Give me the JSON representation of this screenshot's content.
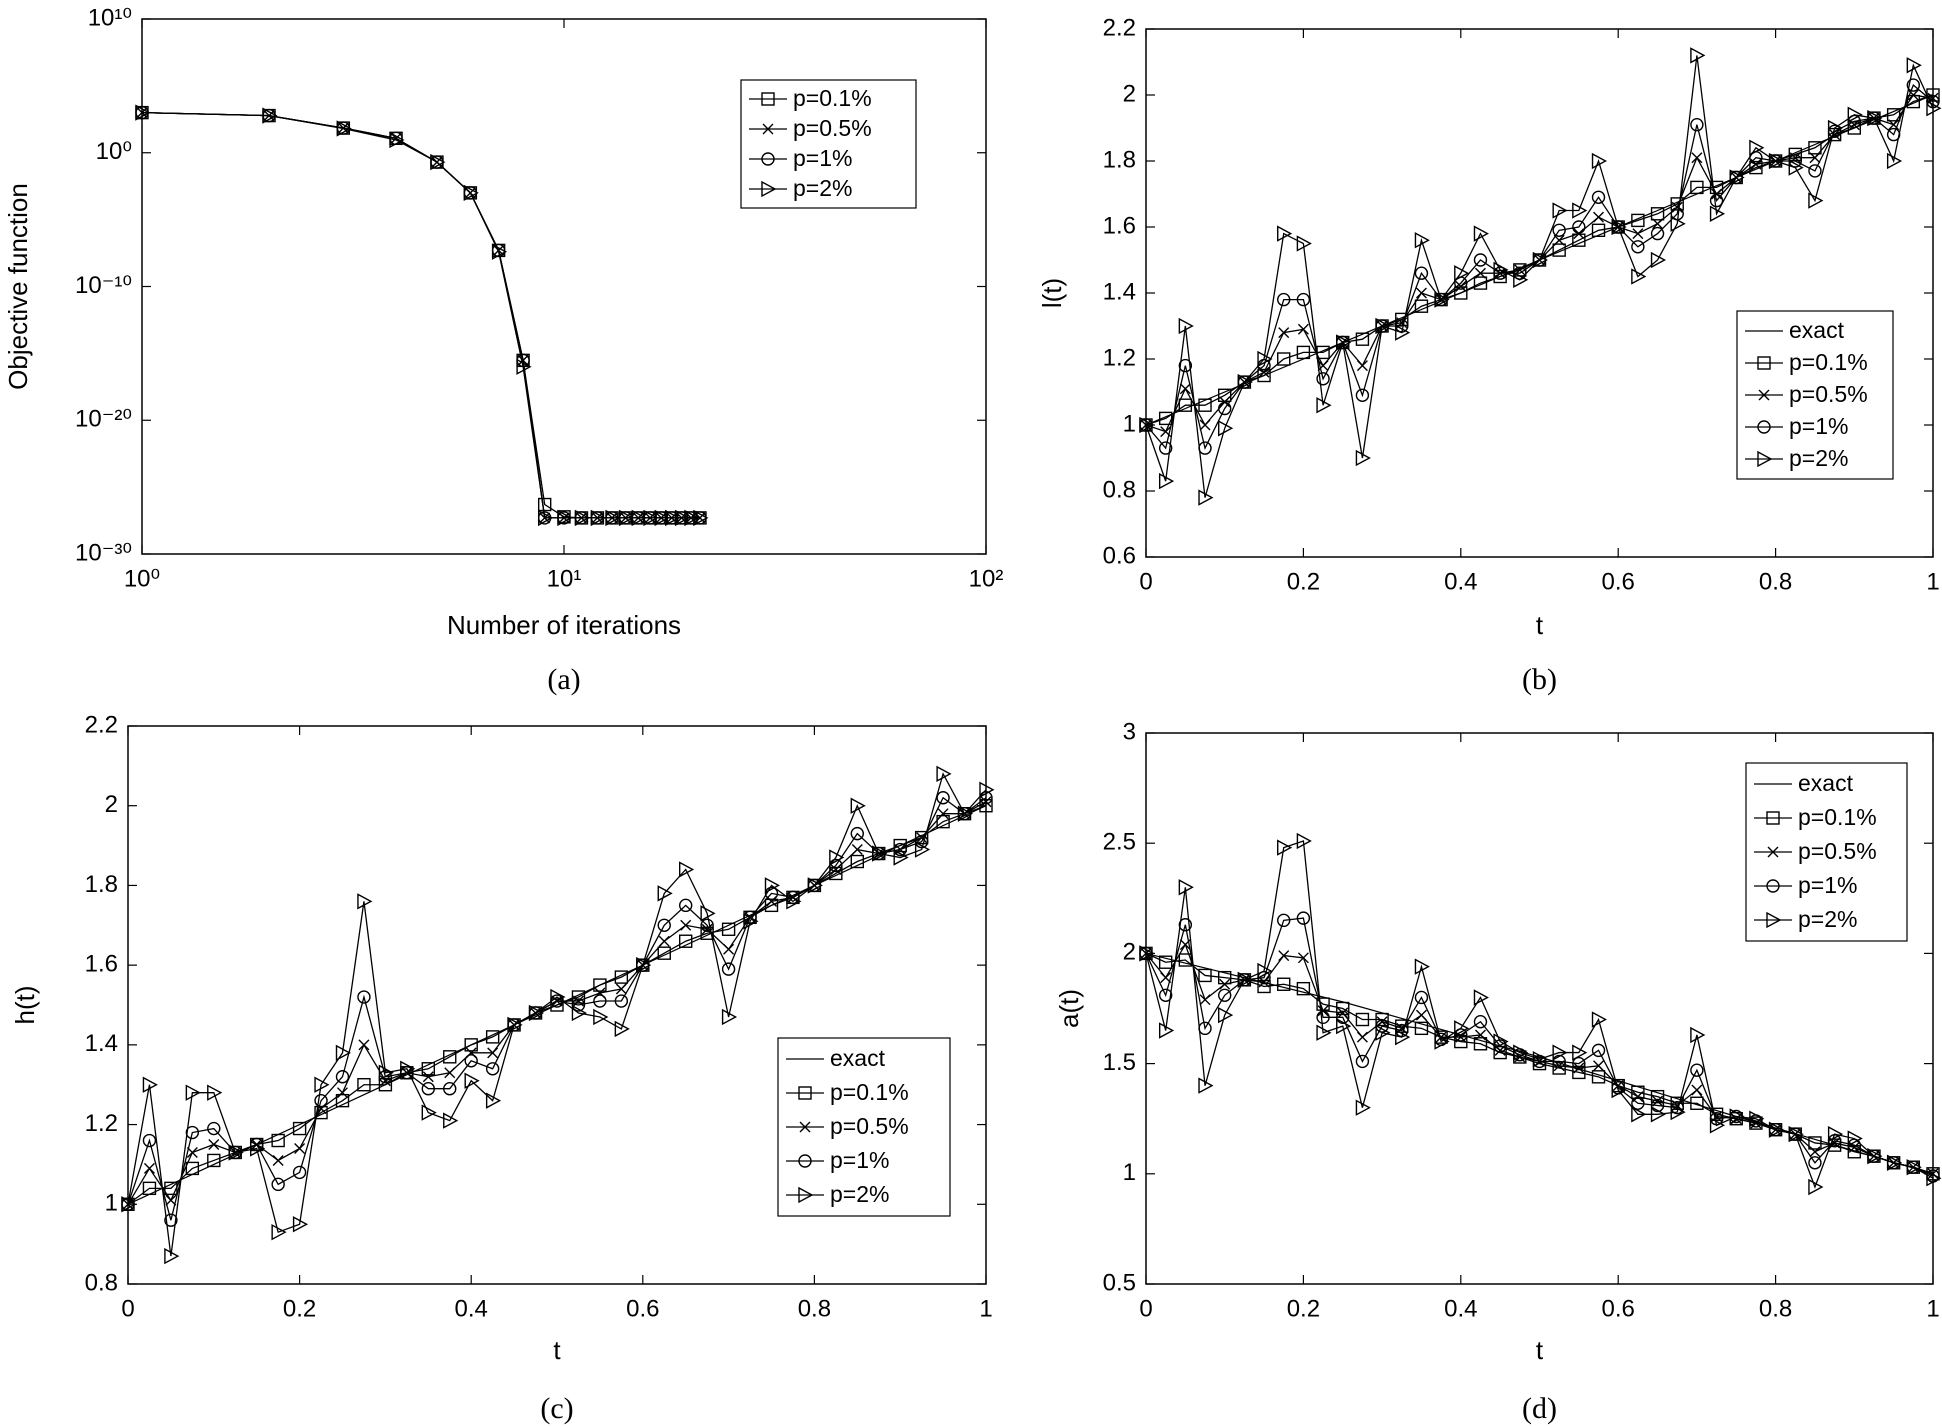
{
  "chart_data": [
    {
      "type": "line",
      "caption": "(a)",
      "xlabel": "Number of iterations",
      "ylabel": "Objective function",
      "xscale": "log",
      "yscale": "log",
      "xlim": [
        1,
        100
      ],
      "ylim": [
        1e-30,
        10000000000.0
      ],
      "xticks": [
        {
          "value": 1,
          "label": "10⁰"
        },
        {
          "value": 10,
          "label": "10¹"
        },
        {
          "value": 100,
          "label": "10²"
        }
      ],
      "yticks": [
        {
          "value": 1e-30,
          "label": "10⁻³⁰"
        },
        {
          "value": 1e-20,
          "label": "10⁻²⁰"
        },
        {
          "value": 1e-10,
          "label": "10⁻¹⁰"
        },
        {
          "value": 1,
          "label": "10⁰"
        },
        {
          "value": 10000000000.0,
          "label": "10¹⁰"
        }
      ],
      "legend": "upper right",
      "grid": false,
      "x": [
        1,
        2,
        3,
        4,
        5,
        6,
        7,
        8,
        9,
        10,
        11,
        12,
        13,
        14,
        15,
        16,
        17,
        18,
        19,
        20,
        21
      ],
      "series": [
        {
          "name": "p=0.1%",
          "color": "#000000",
          "marker": "square",
          "values": [
            1000,
            600,
            70,
            12,
            0.2,
            0.001,
            5e-08,
            3e-16,
            5e-27,
            6e-28,
            5e-28,
            5e-28,
            5e-28,
            5e-28,
            5e-28,
            5e-28,
            5e-28,
            5e-28,
            5e-28,
            5e-28,
            5e-28
          ]
        },
        {
          "name": "p=0.5%",
          "color": "#000000",
          "marker": "x",
          "values": [
            1000,
            600,
            70,
            12,
            0.2,
            0.001,
            5e-08,
            3e-16,
            5e-28,
            5e-28,
            5e-28,
            5e-28,
            5e-28,
            5e-28,
            5e-28,
            5e-28,
            5e-28,
            5e-28,
            5e-28,
            5e-28,
            5e-28
          ]
        },
        {
          "name": "p=1%",
          "color": "#000000",
          "marker": "circle",
          "values": [
            1000,
            600,
            70,
            12,
            0.2,
            0.001,
            5e-08,
            3e-16,
            5e-28,
            5e-28,
            5e-28,
            5e-28,
            5e-28,
            5e-28,
            5e-28,
            5e-28,
            5e-28,
            5e-28,
            5e-28,
            5e-28,
            5e-28
          ]
        },
        {
          "name": "p=2%",
          "color": "#000000",
          "marker": "triangle-right",
          "values": [
            1000,
            600,
            65,
            9,
            0.2,
            0.001,
            4e-08,
            1e-16,
            5e-28,
            5e-28,
            5e-28,
            5e-28,
            5e-28,
            5e-28,
            5e-28,
            5e-28,
            5e-28,
            5e-28,
            5e-28,
            5e-28,
            5e-28
          ]
        }
      ]
    },
    {
      "type": "line",
      "caption": "(b)",
      "xlabel": "t",
      "ylabel": "l(t)",
      "xlim": [
        0,
        1
      ],
      "ylim": [
        0.6,
        2.2
      ],
      "xticks": [
        0,
        0.2,
        0.4,
        0.6,
        0.8,
        1
      ],
      "yticks": [
        0.6,
        0.8,
        1,
        1.2,
        1.4,
        1.6,
        1.8,
        2,
        2.2
      ],
      "legend": "lower right",
      "grid": false,
      "x": [
        0,
        0.025,
        0.05,
        0.075,
        0.1,
        0.125,
        0.15,
        0.175,
        0.2,
        0.225,
        0.25,
        0.275,
        0.3,
        0.325,
        0.35,
        0.375,
        0.4,
        0.425,
        0.45,
        0.475,
        0.5,
        0.525,
        0.55,
        0.575,
        0.6,
        0.625,
        0.65,
        0.675,
        0.7,
        0.725,
        0.75,
        0.775,
        0.8,
        0.825,
        0.85,
        0.875,
        0.9,
        0.925,
        0.95,
        0.975,
        1
      ],
      "series": [
        {
          "name": "exact",
          "color": "#000000",
          "marker": "none",
          "x": [
            0,
            1
          ],
          "values": [
            1,
            2
          ]
        },
        {
          "name": "p=0.1%",
          "color": "#000000",
          "marker": "square",
          "values": [
            1,
            1.02,
            1.06,
            1.06,
            1.09,
            1.13,
            1.15,
            1.2,
            1.22,
            1.22,
            1.25,
            1.26,
            1.3,
            1.32,
            1.36,
            1.38,
            1.4,
            1.43,
            1.45,
            1.47,
            1.5,
            1.53,
            1.56,
            1.59,
            1.6,
            1.62,
            1.64,
            1.67,
            1.72,
            1.72,
            1.75,
            1.78,
            1.8,
            1.82,
            1.84,
            1.88,
            1.9,
            1.93,
            1.94,
            1.98,
            2
          ]
        },
        {
          "name": "p=0.5%",
          "color": "#000000",
          "marker": "x",
          "values": [
            1,
            0.98,
            1.11,
            1,
            1.07,
            1.13,
            1.16,
            1.28,
            1.29,
            1.18,
            1.25,
            1.18,
            1.3,
            1.31,
            1.4,
            1.38,
            1.42,
            1.46,
            1.46,
            1.47,
            1.5,
            1.56,
            1.58,
            1.63,
            1.6,
            1.58,
            1.61,
            1.66,
            1.81,
            1.7,
            1.75,
            1.79,
            1.8,
            1.81,
            1.81,
            1.88,
            1.91,
            1.93,
            1.91,
            2,
            1.99
          ]
        },
        {
          "name": "p=1%",
          "color": "#000000",
          "marker": "circle",
          "values": [
            1,
            0.93,
            1.18,
            0.93,
            1.05,
            1.13,
            1.18,
            1.38,
            1.38,
            1.14,
            1.25,
            1.09,
            1.3,
            1.3,
            1.46,
            1.38,
            1.43,
            1.5,
            1.46,
            1.46,
            1.5,
            1.59,
            1.6,
            1.69,
            1.6,
            1.54,
            1.58,
            1.64,
            1.91,
            1.68,
            1.75,
            1.81,
            1.8,
            1.8,
            1.77,
            1.89,
            1.92,
            1.93,
            1.88,
            2.03,
            1.98
          ]
        },
        {
          "name": "p=2%",
          "color": "#000000",
          "marker": "triangle-right",
          "values": [
            1,
            0.83,
            1.3,
            0.78,
            0.99,
            1.13,
            1.2,
            1.58,
            1.55,
            1.06,
            1.25,
            0.9,
            1.3,
            1.28,
            1.56,
            1.38,
            1.46,
            1.58,
            1.47,
            1.44,
            1.5,
            1.65,
            1.65,
            1.8,
            1.6,
            1.45,
            1.5,
            1.61,
            2.12,
            1.64,
            1.75,
            1.84,
            1.8,
            1.78,
            1.68,
            1.9,
            1.94,
            1.93,
            1.8,
            2.09,
            1.96
          ]
        }
      ]
    },
    {
      "type": "line",
      "caption": "(c)",
      "xlabel": "t",
      "ylabel": "h(t)",
      "xlim": [
        0,
        1
      ],
      "ylim": [
        0.8,
        2.2
      ],
      "xticks": [
        0,
        0.2,
        0.4,
        0.6,
        0.8,
        1
      ],
      "yticks": [
        0.8,
        1,
        1.2,
        1.4,
        1.6,
        1.8,
        2,
        2.2
      ],
      "legend": "lower right",
      "grid": false,
      "x": [
        0,
        0.025,
        0.05,
        0.075,
        0.1,
        0.125,
        0.15,
        0.175,
        0.2,
        0.225,
        0.25,
        0.275,
        0.3,
        0.325,
        0.35,
        0.375,
        0.4,
        0.425,
        0.45,
        0.475,
        0.5,
        0.525,
        0.55,
        0.575,
        0.6,
        0.625,
        0.65,
        0.675,
        0.7,
        0.725,
        0.75,
        0.775,
        0.8,
        0.825,
        0.85,
        0.875,
        0.9,
        0.925,
        0.95,
        0.975,
        1
      ],
      "series": [
        {
          "name": "exact",
          "color": "#000000",
          "marker": "none",
          "x": [
            0,
            1
          ],
          "values": [
            1,
            2
          ]
        },
        {
          "name": "p=0.1%",
          "color": "#000000",
          "marker": "square",
          "values": [
            1,
            1.04,
            1.04,
            1.09,
            1.11,
            1.13,
            1.15,
            1.16,
            1.19,
            1.23,
            1.26,
            1.3,
            1.3,
            1.33,
            1.34,
            1.37,
            1.4,
            1.42,
            1.45,
            1.48,
            1.5,
            1.52,
            1.55,
            1.57,
            1.6,
            1.63,
            1.66,
            1.68,
            1.69,
            1.72,
            1.75,
            1.77,
            1.8,
            1.83,
            1.86,
            1.88,
            1.9,
            1.92,
            1.96,
            1.98,
            2
          ]
        },
        {
          "name": "p=0.5%",
          "color": "#000000",
          "marker": "x",
          "values": [
            1,
            1.09,
            1.01,
            1.13,
            1.15,
            1.13,
            1.15,
            1.11,
            1.14,
            1.24,
            1.28,
            1.4,
            1.31,
            1.33,
            1.32,
            1.33,
            1.38,
            1.38,
            1.45,
            1.48,
            1.51,
            1.51,
            1.53,
            1.54,
            1.6,
            1.66,
            1.7,
            1.69,
            1.64,
            1.72,
            1.76,
            1.77,
            1.8,
            1.84,
            1.89,
            1.88,
            1.89,
            1.92,
            1.98,
            1.98,
            2.01
          ]
        },
        {
          "name": "p=1%",
          "color": "#000000",
          "marker": "circle",
          "values": [
            1,
            1.16,
            0.96,
            1.18,
            1.19,
            1.13,
            1.15,
            1.05,
            1.08,
            1.26,
            1.32,
            1.52,
            1.32,
            1.33,
            1.29,
            1.29,
            1.36,
            1.34,
            1.45,
            1.48,
            1.51,
            1.5,
            1.51,
            1.51,
            1.6,
            1.7,
            1.75,
            1.7,
            1.59,
            1.72,
            1.78,
            1.77,
            1.8,
            1.85,
            1.93,
            1.88,
            1.89,
            1.91,
            2.02,
            1.98,
            2.02
          ]
        },
        {
          "name": "p=2%",
          "color": "#000000",
          "marker": "triangle-right",
          "values": [
            1,
            1.3,
            0.87,
            1.28,
            1.28,
            1.13,
            1.14,
            0.93,
            0.95,
            1.3,
            1.38,
            1.76,
            1.33,
            1.34,
            1.23,
            1.21,
            1.31,
            1.26,
            1.45,
            1.48,
            1.52,
            1.48,
            1.47,
            1.44,
            1.6,
            1.78,
            1.84,
            1.73,
            1.47,
            1.71,
            1.8,
            1.76,
            1.8,
            1.87,
            2,
            1.88,
            1.87,
            1.89,
            2.08,
            1.98,
            2.04
          ]
        }
      ]
    },
    {
      "type": "line",
      "caption": "(d)",
      "xlabel": "t",
      "ylabel": "a(t)",
      "xlim": [
        0,
        1
      ],
      "ylim": [
        0.5,
        3
      ],
      "xticks": [
        0,
        0.2,
        0.4,
        0.6,
        0.8,
        1
      ],
      "yticks": [
        0.5,
        1,
        1.5,
        2,
        2.5,
        3
      ],
      "legend": "upper right",
      "grid": false,
      "x": [
        0,
        0.025,
        0.05,
        0.075,
        0.1,
        0.125,
        0.15,
        0.175,
        0.2,
        0.225,
        0.25,
        0.275,
        0.3,
        0.325,
        0.35,
        0.375,
        0.4,
        0.425,
        0.45,
        0.475,
        0.5,
        0.525,
        0.55,
        0.575,
        0.6,
        0.625,
        0.65,
        0.675,
        0.7,
        0.725,
        0.75,
        0.775,
        0.8,
        0.825,
        0.85,
        0.875,
        0.9,
        0.925,
        0.95,
        0.975,
        1
      ],
      "series": [
        {
          "name": "exact",
          "color": "#000000",
          "marker": "none",
          "x": [
            0,
            0.25,
            0.5,
            0.75,
            1
          ],
          "values": [
            2,
            1.78,
            1.53,
            1.26,
            1
          ]
        },
        {
          "name": "p=0.1%",
          "color": "#000000",
          "marker": "square",
          "values": [
            2,
            1.96,
            1.97,
            1.9,
            1.89,
            1.88,
            1.85,
            1.86,
            1.84,
            1.77,
            1.75,
            1.7,
            1.7,
            1.67,
            1.66,
            1.62,
            1.6,
            1.59,
            1.55,
            1.53,
            1.5,
            1.48,
            1.46,
            1.44,
            1.4,
            1.37,
            1.35,
            1.32,
            1.32,
            1.27,
            1.25,
            1.23,
            1.2,
            1.18,
            1.14,
            1.13,
            1.1,
            1.08,
            1.05,
            1.03,
            1
          ]
        },
        {
          "name": "p=0.5%",
          "color": "#000000",
          "marker": "x",
          "values": [
            2,
            1.89,
            2.04,
            1.79,
            1.86,
            1.88,
            1.87,
            1.99,
            1.98,
            1.74,
            1.73,
            1.62,
            1.69,
            1.66,
            1.72,
            1.62,
            1.62,
            1.63,
            1.56,
            1.53,
            1.51,
            1.49,
            1.48,
            1.49,
            1.4,
            1.35,
            1.33,
            1.31,
            1.38,
            1.26,
            1.25,
            1.23,
            1.2,
            1.18,
            1.1,
            1.14,
            1.12,
            1.08,
            1.05,
            1.03,
            1
          ]
        },
        {
          "name": "p=1%",
          "color": "#000000",
          "marker": "circle",
          "values": [
            2,
            1.81,
            2.13,
            1.66,
            1.81,
            1.88,
            1.89,
            2.15,
            2.16,
            1.71,
            1.71,
            1.51,
            1.67,
            1.65,
            1.8,
            1.61,
            1.63,
            1.69,
            1.58,
            1.54,
            1.51,
            1.51,
            1.5,
            1.56,
            1.39,
            1.32,
            1.31,
            1.3,
            1.47,
            1.25,
            1.26,
            1.24,
            1.2,
            1.18,
            1.05,
            1.15,
            1.13,
            1.08,
            1.05,
            1.03,
            0.99
          ]
        },
        {
          "name": "p=2%",
          "color": "#000000",
          "marker": "triangle-right",
          "values": [
            2,
            1.65,
            2.3,
            1.4,
            1.72,
            1.88,
            1.92,
            2.48,
            2.51,
            1.64,
            1.67,
            1.3,
            1.64,
            1.62,
            1.94,
            1.6,
            1.66,
            1.8,
            1.6,
            1.55,
            1.52,
            1.55,
            1.55,
            1.7,
            1.38,
            1.27,
            1.27,
            1.28,
            1.63,
            1.22,
            1.26,
            1.25,
            1.2,
            1.18,
            0.94,
            1.18,
            1.16,
            1.08,
            1.05,
            1.03,
            0.98
          ]
        }
      ]
    }
  ]
}
